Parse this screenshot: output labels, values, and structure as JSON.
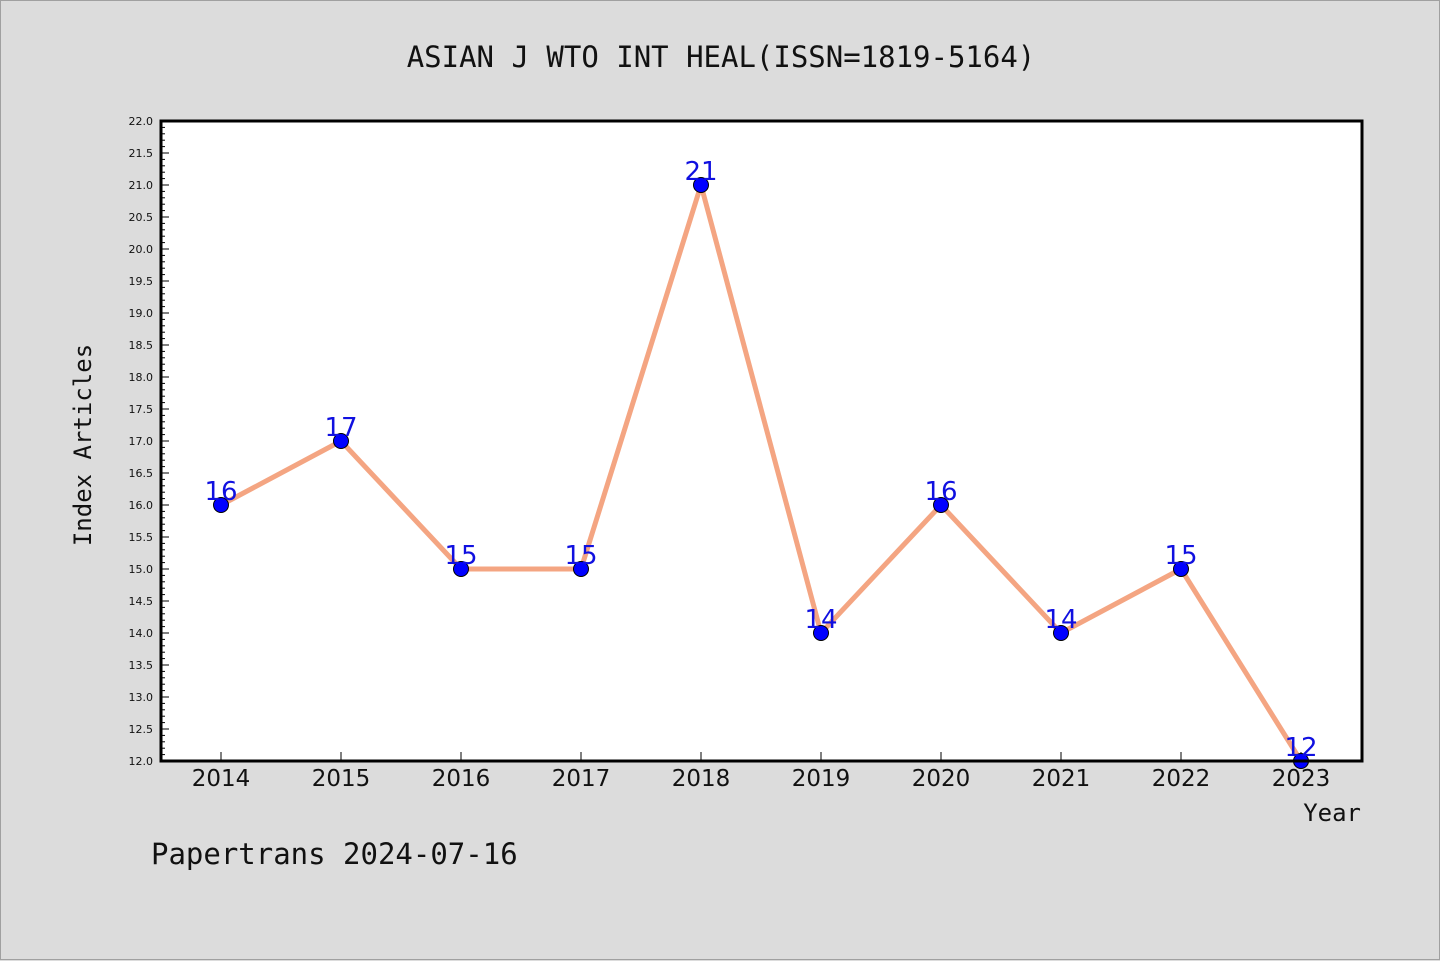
{
  "chart_data": {
    "type": "line",
    "title": "ASIAN J WTO INT HEAL(ISSN=1819-5164)",
    "xlabel": "Year",
    "ylabel": "Index Articles",
    "categories": [
      "2014",
      "2015",
      "2016",
      "2017",
      "2018",
      "2019",
      "2020",
      "2021",
      "2022",
      "2023"
    ],
    "values": [
      16,
      17,
      15,
      15,
      21,
      14,
      16,
      14,
      15,
      12
    ],
    "ylim": [
      12.0,
      22.0
    ],
    "ytick_step": 0.5,
    "grid": false,
    "legend": "none",
    "line_color": "#f4a582",
    "marker_color": "#0000ff",
    "label_color": "#1010e0"
  },
  "footer": {
    "text": "Papertrans 2024-07-16"
  }
}
